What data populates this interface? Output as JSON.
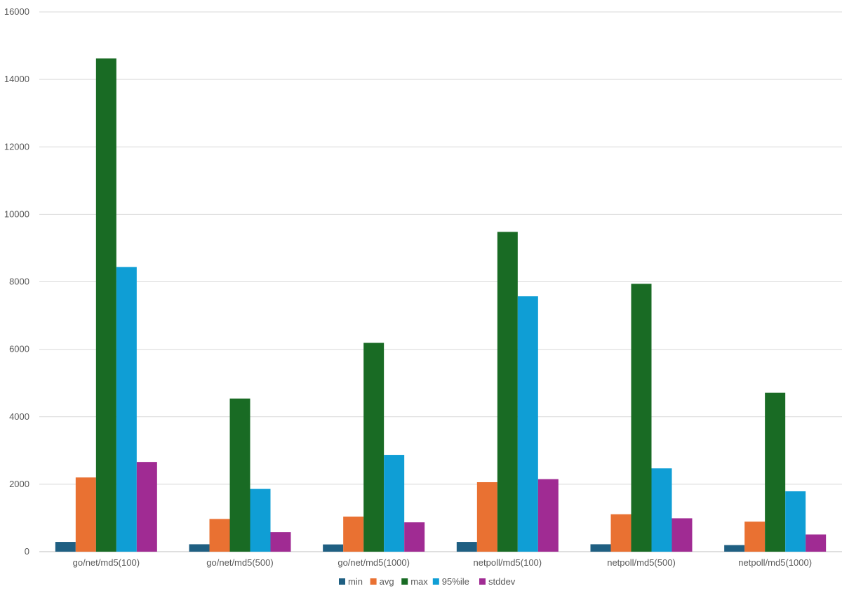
{
  "chart_data": {
    "type": "bar",
    "categories": [
      "go/net/md5(100)",
      "go/net/md5(500)",
      "go/net/md5(1000)",
      "netpoll/md5(100)",
      "netpoll/md5(500)",
      "netpoll/md5(1000)"
    ],
    "series": [
      {
        "name": "min",
        "color": "#1f5f82",
        "values": [
          290,
          220,
          215,
          290,
          220,
          195
        ]
      },
      {
        "name": "avg",
        "color": "#e97132",
        "values": [
          2200,
          970,
          1040,
          2060,
          1110,
          890
        ]
      },
      {
        "name": "max",
        "color": "#196b24",
        "values": [
          14620,
          4540,
          6190,
          9480,
          7940,
          4710
        ]
      },
      {
        "name": "95%ile",
        "color": "#0f9ed5",
        "values": [
          8440,
          1860,
          2870,
          7570,
          2470,
          1790
        ]
      },
      {
        "name": "stddev",
        "color": "#a02b93",
        "values": [
          2660,
          580,
          870,
          2150,
          990,
          510
        ]
      }
    ],
    "y_ticks": [
      "0",
      "2000",
      "4000",
      "6000",
      "8000",
      "10000",
      "12000",
      "14000",
      "16000"
    ],
    "ylim": [
      0,
      16000
    ],
    "grid": true,
    "legend_position": "bottom"
  }
}
